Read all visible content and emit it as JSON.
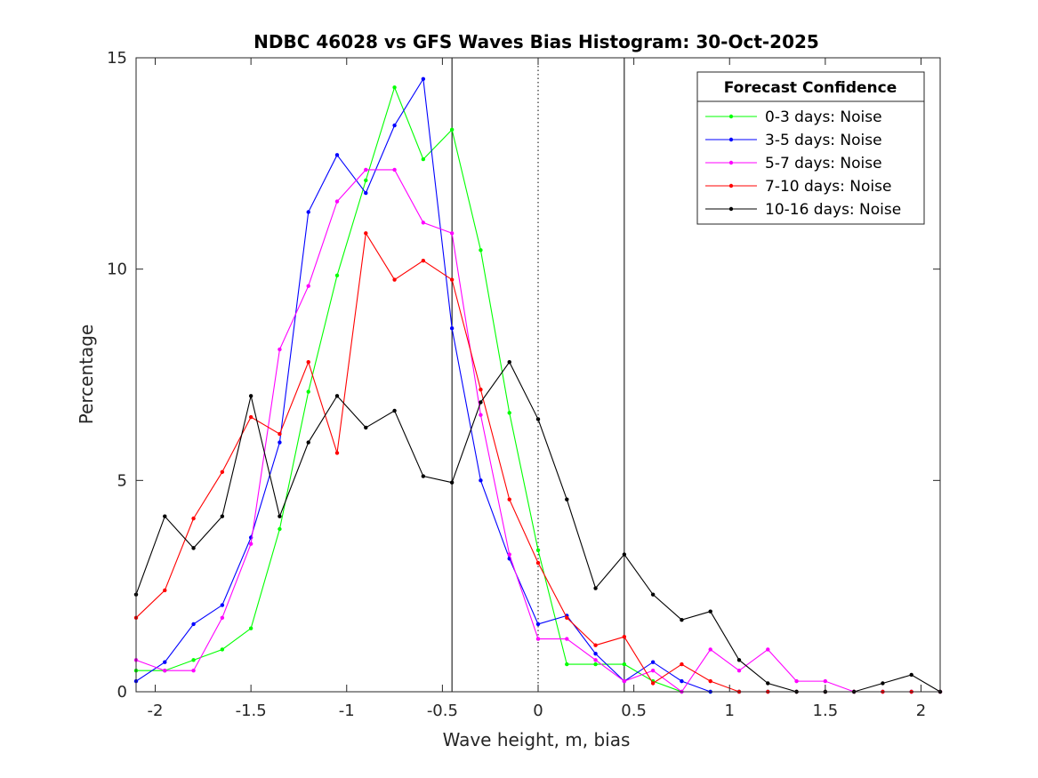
{
  "chart_data": {
    "type": "line",
    "title": "NDBC 46028 vs GFS Waves Bias Histogram: 30-Oct-2025",
    "xlabel": "Wave height, m, bias",
    "ylabel": "Percentage",
    "xlim": [
      -2.1,
      2.1
    ],
    "ylim": [
      0,
      15
    ],
    "xticks": [
      -2,
      -1.5,
      -1,
      -0.5,
      0,
      0.5,
      1,
      1.5,
      2
    ],
    "xtick_labels": [
      "-2",
      "-1.5",
      "-1",
      "-0.5",
      "0",
      "0.5",
      "1",
      "1.5",
      "2"
    ],
    "yticks": [
      0,
      5,
      10,
      15
    ],
    "ytick_labels": [
      "0",
      "5",
      "10",
      "15"
    ],
    "vertical_lines": [
      {
        "x": -0.45,
        "style": "solid"
      },
      {
        "x": 0,
        "style": "dotted"
      },
      {
        "x": 0.45,
        "style": "solid"
      }
    ],
    "legend": {
      "title": "Forecast Confidence",
      "position": "top-right"
    },
    "x": [
      -2.1,
      -1.95,
      -1.8,
      -1.65,
      -1.5,
      -1.35,
      -1.2,
      -1.05,
      -0.9,
      -0.75,
      -0.6,
      -0.45,
      -0.3,
      -0.15,
      0,
      0.15,
      0.3,
      0.45,
      0.6,
      0.75,
      0.9,
      1.05,
      1.2,
      1.35,
      1.5,
      1.65,
      1.8,
      1.95,
      2.1
    ],
    "series": [
      {
        "name": "0-3 days: Noise",
        "color": "#00ff00",
        "values": [
          0.5,
          0.5,
          0.75,
          1.0,
          1.5,
          3.85,
          7.1,
          9.85,
          12.1,
          14.3,
          12.6,
          13.3,
          10.45,
          6.6,
          3.35,
          0.65,
          0.65,
          0.65,
          0.25,
          0,
          0,
          0,
          0,
          0,
          0,
          0,
          0,
          0,
          0
        ]
      },
      {
        "name": "3-5 days: Noise",
        "color": "#0000ff",
        "values": [
          0.25,
          0.7,
          1.6,
          2.05,
          3.65,
          5.9,
          11.35,
          12.7,
          11.8,
          13.4,
          14.5,
          8.6,
          5.0,
          3.15,
          1.6,
          1.8,
          0.9,
          0.25,
          0.7,
          0.25,
          0,
          0,
          0,
          0,
          0,
          0,
          0,
          0,
          0
        ]
      },
      {
        "name": "5-7 days: Noise",
        "color": "#ff00ff",
        "values": [
          0.75,
          0.5,
          0.5,
          1.75,
          3.5,
          8.1,
          9.6,
          11.6,
          12.35,
          12.35,
          11.1,
          10.85,
          6.55,
          3.25,
          1.25,
          1.25,
          0.75,
          0.25,
          0.5,
          0,
          1.0,
          0.5,
          1.0,
          0.25,
          0.25,
          0,
          0,
          0,
          0
        ]
      },
      {
        "name": "7-10 days: Noise",
        "color": "#ff0000",
        "values": [
          1.75,
          2.4,
          4.1,
          5.2,
          6.5,
          6.1,
          7.8,
          5.65,
          10.85,
          9.75,
          10.2,
          9.75,
          7.15,
          4.55,
          3.05,
          1.75,
          1.1,
          1.3,
          0.2,
          0.65,
          0.25,
          0,
          0,
          0,
          0,
          0,
          0,
          0,
          0
        ]
      },
      {
        "name": "10-16 days: Noise",
        "color": "#000000",
        "values": [
          2.3,
          4.15,
          3.4,
          4.15,
          7.0,
          4.15,
          5.9,
          7.0,
          6.25,
          6.65,
          5.1,
          4.95,
          6.85,
          7.8,
          6.45,
          4.55,
          2.45,
          3.25,
          2.3,
          1.7,
          1.9,
          0.75,
          0.2,
          0,
          0,
          0,
          0.2,
          0.4,
          0
        ]
      }
    ]
  }
}
